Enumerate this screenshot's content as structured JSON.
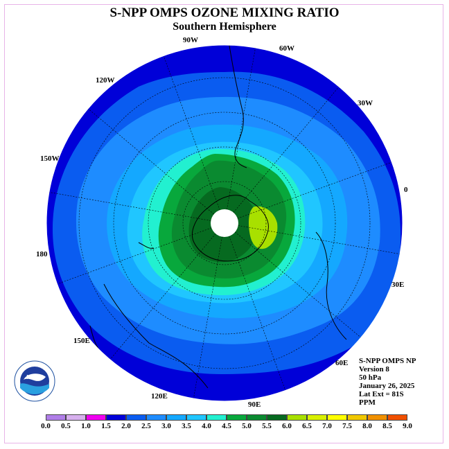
{
  "title": "S-NPP OMPS OZONE MIXING RATIO",
  "subtitle": "Southern Hemisphere",
  "longitude_labels": [
    "90W",
    "60W",
    "120W",
    "30W",
    "150W",
    "0",
    "180",
    "30E",
    "150E",
    "60E",
    "120E",
    "90E"
  ],
  "info": {
    "instrument": "S-NPP OMPS NP",
    "version": "Version 8",
    "pressure": "50 hPa",
    "date": "January 26, 2025",
    "lat_ext": "Lat Ext = 81S",
    "units": "PPM"
  },
  "colorbar": {
    "labels": [
      "0.0",
      "0.5",
      "1.0",
      "1.5",
      "2.0",
      "2.5",
      "3.0",
      "3.5",
      "4.0",
      "4.5",
      "5.0",
      "5.5",
      "6.0",
      "6.5",
      "7.0",
      "7.5",
      "8.0",
      "8.5",
      "9.0"
    ],
    "colors": [
      "#b07ee8",
      "#d7b0ee",
      "#f000f0",
      "#0000d8",
      "#0a5cf0",
      "#1e8cff",
      "#14a8ff",
      "#20c6ff",
      "#22f0d0",
      "#08a83c",
      "#0a8a30",
      "#066a20",
      "#a8e000",
      "#d8f000",
      "#ffff00",
      "#f0c800",
      "#f09000",
      "#f05000",
      "#e00000",
      "#7a5030"
    ]
  },
  "logo": {
    "text": "NOAA",
    "ring_text": "NATIONAL OCEANIC AND ATMOSPHERIC ADMINISTRATION · U.S. DEPARTMENT OF COMMERCE"
  },
  "map_colors": {
    "outer": "#0000d8",
    "band2": "#0a5cf0",
    "band3": "#1e8cff",
    "band4": "#14a8ff",
    "band5": "#20c6ff",
    "band6": "#22f0d0",
    "band7": "#08a83c",
    "band8": "#0a8a30",
    "band9": "#066a20",
    "max": "#a8e000"
  }
}
